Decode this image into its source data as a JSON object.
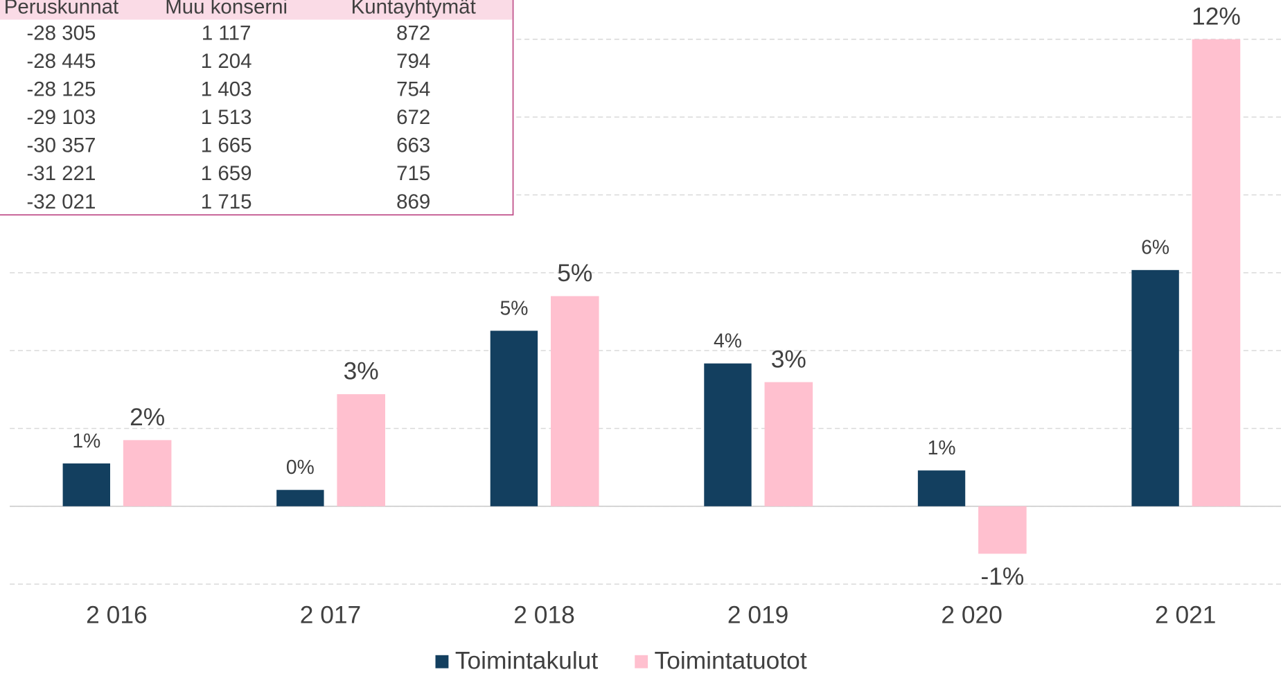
{
  "chart_data": {
    "type": "bar",
    "categories": [
      "2 016",
      "2 017",
      "2 018",
      "2 019",
      "2 020",
      "2 021"
    ],
    "series": [
      {
        "name": "Toimintakulut",
        "color": "#133f5f",
        "values": [
          1.1,
          0.42,
          4.51,
          3.67,
          0.92,
          6.07
        ],
        "value_labels": [
          "1%",
          "0%",
          "5%",
          "4%",
          "1%",
          "6%"
        ]
      },
      {
        "name": "Toimintatuotot",
        "color": "#ffc0cf",
        "values": [
          1.7,
          2.88,
          5.4,
          3.19,
          -1.22,
          12.0
        ],
        "value_labels": [
          "2%",
          "3%",
          "5%",
          "3%",
          "-1%",
          "12%"
        ]
      }
    ],
    "ylim": [
      -2,
      12
    ],
    "yticks": [
      -2,
      0,
      2,
      4,
      6,
      8,
      10,
      12
    ],
    "grid": true,
    "legend": "bottom"
  },
  "table": {
    "columns": [
      "Peruskunnat",
      "Muu konserni",
      "Kuntayhtymät"
    ],
    "rows": [
      [
        "-28 305",
        "1 117",
        "872"
      ],
      [
        "-28 445",
        "1 204",
        "794"
      ],
      [
        "-28 125",
        "1 403",
        "754"
      ],
      [
        "-29 103",
        "1 513",
        "672"
      ],
      [
        "-30 357",
        "1 665",
        "663"
      ],
      [
        "-31 221",
        "1 659",
        "715"
      ],
      [
        "-32 021",
        "1 715",
        "869"
      ]
    ]
  }
}
